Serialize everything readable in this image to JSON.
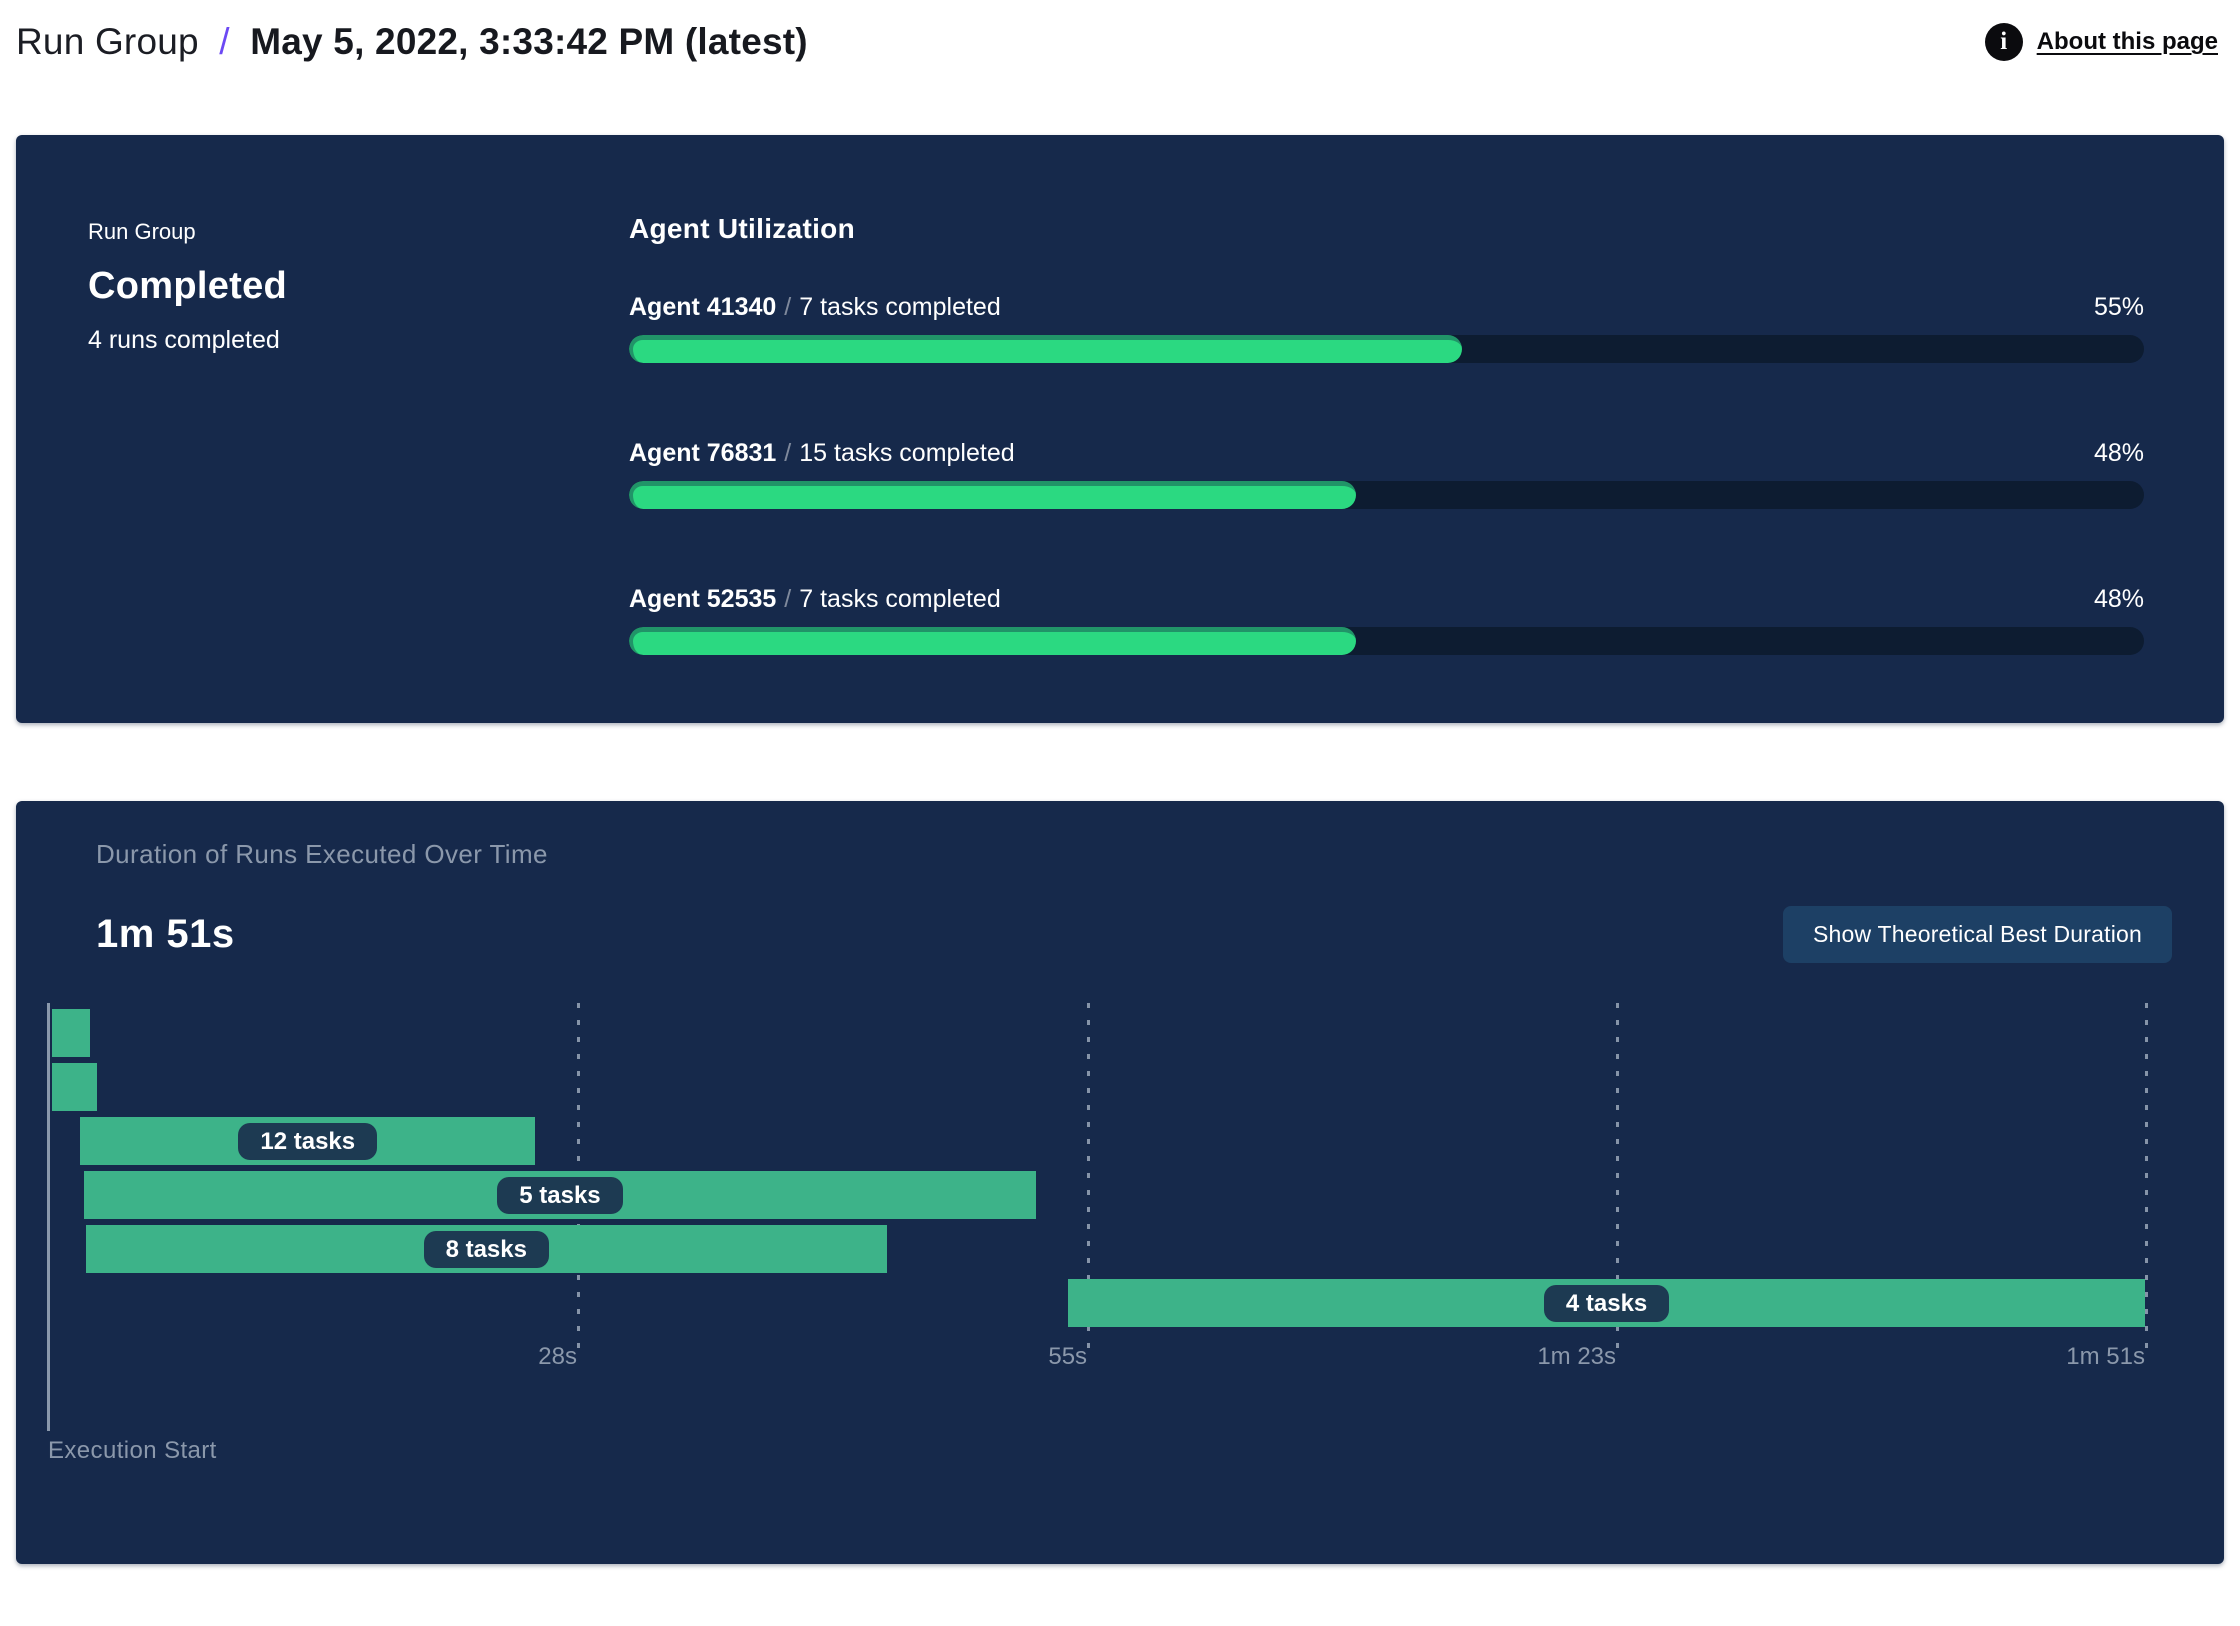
{
  "header": {
    "breadcrumb_root": "Run Group",
    "breadcrumb_separator": "/",
    "breadcrumb_current": "May 5, 2022, 3:33:42 PM (latest)",
    "info_icon_glyph": "i",
    "about_link_label": "About this page"
  },
  "run_group_card": {
    "eyebrow": "Run Group",
    "status": "Completed",
    "runs_summary": "4 runs completed",
    "utilization_heading": "Agent Utilization",
    "task_separator": "/"
  },
  "duration_card": {
    "title": "Duration of Runs Executed Over Time",
    "total_duration": "1m 51s",
    "button_label": "Show Theoretical Best Duration",
    "execution_start_label": "Execution Start"
  },
  "colors": {
    "card_navy": "#16294B",
    "track_dark": "#0D1C31",
    "progress_green": "#2BD981",
    "progress_green_dark": "#219468",
    "gantt_green": "#3DB389",
    "pill_navy": "#1D3A52",
    "button_navy": "#1D4065",
    "muted_gray": "#8B98AB",
    "accent_purple": "#6C49F4"
  },
  "chart_data": [
    {
      "type": "bar",
      "title": "Agent Utilization",
      "orientation": "horizontal",
      "categories": [
        "Agent 41340",
        "Agent 76831",
        "Agent 52535"
      ],
      "values": [
        55,
        48,
        48
      ],
      "percent_labels": [
        "55%",
        "48%",
        "48%"
      ],
      "annotations": [
        "7 tasks completed",
        "15 tasks completed",
        "7 tasks completed"
      ],
      "xlim": [
        0,
        100
      ],
      "unit": "%"
    },
    {
      "type": "bar",
      "variant": "gantt-timeline",
      "title": "Duration of Runs Executed Over Time",
      "total_duration_label": "1m 51s",
      "xlabel": "Execution Start",
      "xlim_s": [
        0,
        111
      ],
      "grid": "dashed-vertical",
      "axis_ticks": [
        {
          "s": 28,
          "label": "28s"
        },
        {
          "s": 55,
          "label": "55s"
        },
        {
          "s": 83,
          "label": "1m 23s"
        },
        {
          "s": 111,
          "label": "1m 51s"
        }
      ],
      "rows": [
        {
          "start_s": 0.2,
          "end_s": 2.2,
          "label": null
        },
        {
          "start_s": 0.2,
          "end_s": 2.6,
          "label": null
        },
        {
          "start_s": 1.7,
          "end_s": 25.8,
          "label": "12 tasks"
        },
        {
          "start_s": 1.9,
          "end_s": 52.3,
          "label": "5 tasks"
        },
        {
          "start_s": 2.0,
          "end_s": 44.4,
          "label": "8 tasks"
        },
        {
          "start_s": 54.0,
          "end_s": 111.0,
          "label": "4 tasks"
        }
      ]
    }
  ]
}
